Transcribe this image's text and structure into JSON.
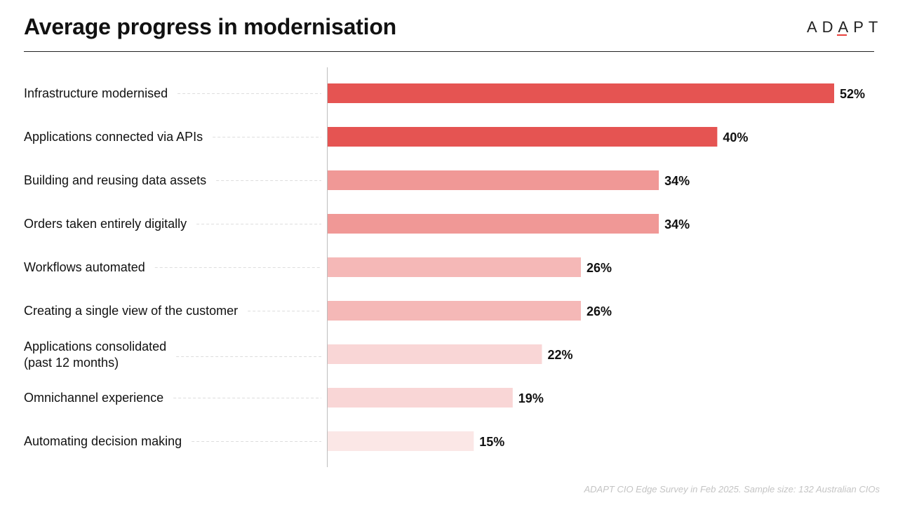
{
  "title": "Average progress in modernisation",
  "logo": {
    "text": "ADAPT"
  },
  "source": "ADAPT CIO Edge Survey in Feb 2025. Sample size: 132 Australian CIOs",
  "colors": {
    "bar_dark": "#e55452",
    "bar_medium": "#f09896",
    "bar_light": "#f5b8b7",
    "bar_lighter": "#f9d6d6",
    "bar_lightest": "#fbe7e6",
    "title_rule": "#222222",
    "axis": "#bdbdbd",
    "leader": "#dddddd",
    "accent": "#e8413c"
  },
  "chart_data": {
    "type": "bar",
    "orientation": "horizontal",
    "categories": [
      "Infrastructure modernised",
      "Applications connected via APIs",
      "Building and reusing data assets",
      "Orders taken entirely digitally",
      "Workflows automated",
      "Creating a single view of the customer",
      "Applications consolidated\n(past 12 months)",
      "Omnichannel experience",
      "Automating decision making"
    ],
    "values": [
      52,
      40,
      34,
      34,
      26,
      26,
      22,
      19,
      15
    ],
    "value_labels": [
      "52%",
      "40%",
      "34%",
      "34%",
      "26%",
      "26%",
      "22%",
      "19%",
      "15%"
    ],
    "bar_colors": [
      "#e55452",
      "#e55452",
      "#f09896",
      "#f09896",
      "#f5b8b7",
      "#f5b8b7",
      "#f9d6d6",
      "#f9d6d6",
      "#fbe7e6"
    ],
    "xlim": [
      0,
      56
    ],
    "grid": false,
    "legend": "none"
  }
}
